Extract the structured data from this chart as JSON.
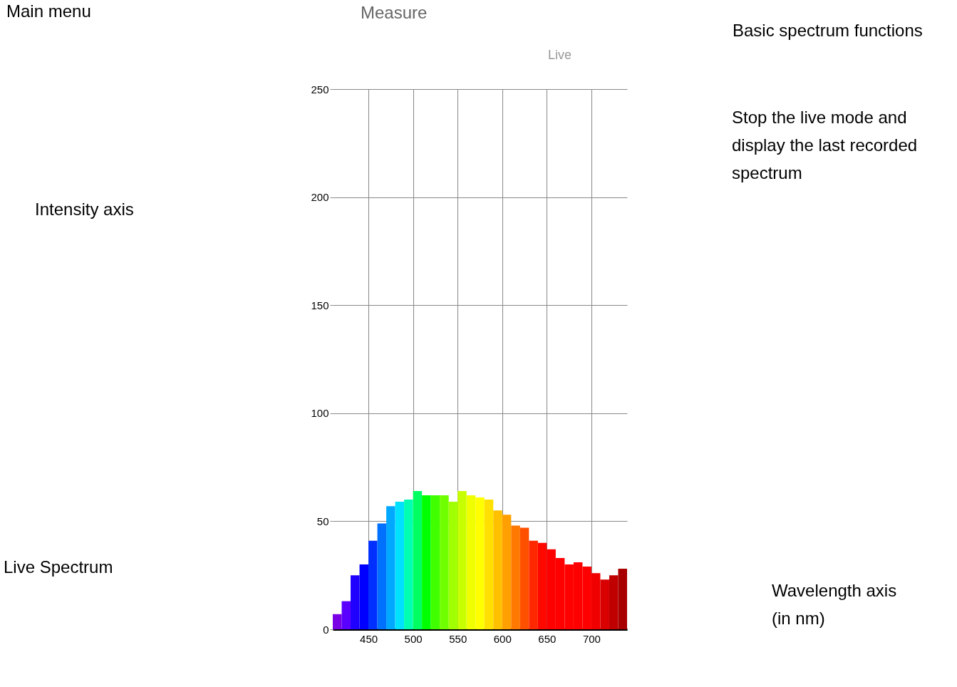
{
  "chart_data": {
    "type": "histogram",
    "title": "Measure",
    "bins": [
      410,
      420,
      430,
      440,
      450,
      460,
      470,
      480,
      490,
      500,
      510,
      520,
      530,
      540,
      550,
      560,
      570,
      580,
      590,
      600,
      610,
      620,
      630,
      640,
      650,
      660,
      670,
      680,
      690,
      700,
      710,
      720,
      730,
      740
    ],
    "values": [
      7,
      13,
      25,
      30,
      41,
      49,
      57,
      59,
      60,
      64,
      62,
      62,
      62,
      59,
      64,
      62,
      61,
      60,
      55,
      53,
      48,
      47,
      41,
      40,
      37,
      33,
      30,
      31,
      29,
      26,
      23,
      25,
      28
    ],
    "colors": [
      "#7a00e6",
      "#5a00ff",
      "#2000ff",
      "#0000ff",
      "#0030ff",
      "#0070ff",
      "#00a8ff",
      "#00e0ff",
      "#00ffb0",
      "#00ff60",
      "#00ff00",
      "#40ff00",
      "#70ff00",
      "#a0ff00",
      "#c8ff00",
      "#f0ff00",
      "#ffff00",
      "#ffe000",
      "#ffc000",
      "#ffa000",
      "#ff7800",
      "#ff5000",
      "#ff2800",
      "#ff0800",
      "#ff0000",
      "#ff0000",
      "#ff0000",
      "#ff0000",
      "#ff0000",
      "#f00000",
      "#d80000",
      "#c00000",
      "#a80000"
    ],
    "xlim": [
      410,
      740
    ],
    "xticks": [
      450,
      500,
      550,
      600,
      650,
      700
    ],
    "ylim": [
      0,
      250
    ],
    "yticks": [
      0,
      50,
      100,
      150,
      200,
      250
    ],
    "grid": true,
    "annotations": [
      "Main menu",
      "Basic spectrum functions",
      "Live",
      "Stop the live mode and display the last recorded spectrum",
      "Intensity axis",
      "Live Spectrum",
      "Wavelength axis (in nm)"
    ]
  }
}
